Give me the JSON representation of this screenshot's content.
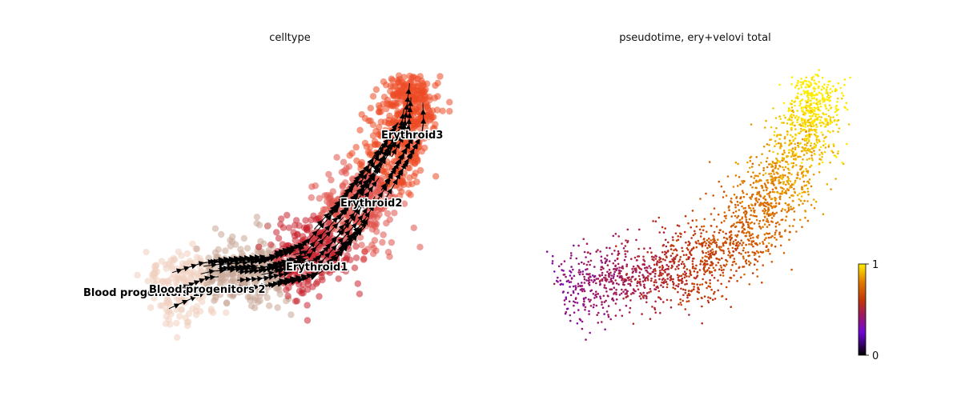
{
  "chart_data": [
    {
      "type": "scatter",
      "title": "celltype",
      "xlabel": "",
      "ylabel": "",
      "grid": false,
      "axes_visible": false,
      "overlay": "velocity stream arrows",
      "categories": [
        {
          "name": "Blood progenitors 1",
          "color": "#f0d0c0"
        },
        {
          "name": "Blood progenitors 2",
          "color": "#c9a897"
        },
        {
          "name": "Erythroid1",
          "color": "#c8242f"
        },
        {
          "name": "Erythroid2",
          "color": "#e0524a"
        },
        {
          "name": "Erythroid3",
          "color": "#ec4a24"
        }
      ]
    },
    {
      "type": "scatter",
      "title": "pseudotime, ery+velovi total",
      "xlabel": "",
      "ylabel": "",
      "grid": false,
      "axes_visible": false,
      "colormap": "gnuplot",
      "colorbar": {
        "min": 0,
        "max": 1,
        "ticks": [
          "0",
          "1"
        ],
        "placement": "right"
      }
    }
  ]
}
